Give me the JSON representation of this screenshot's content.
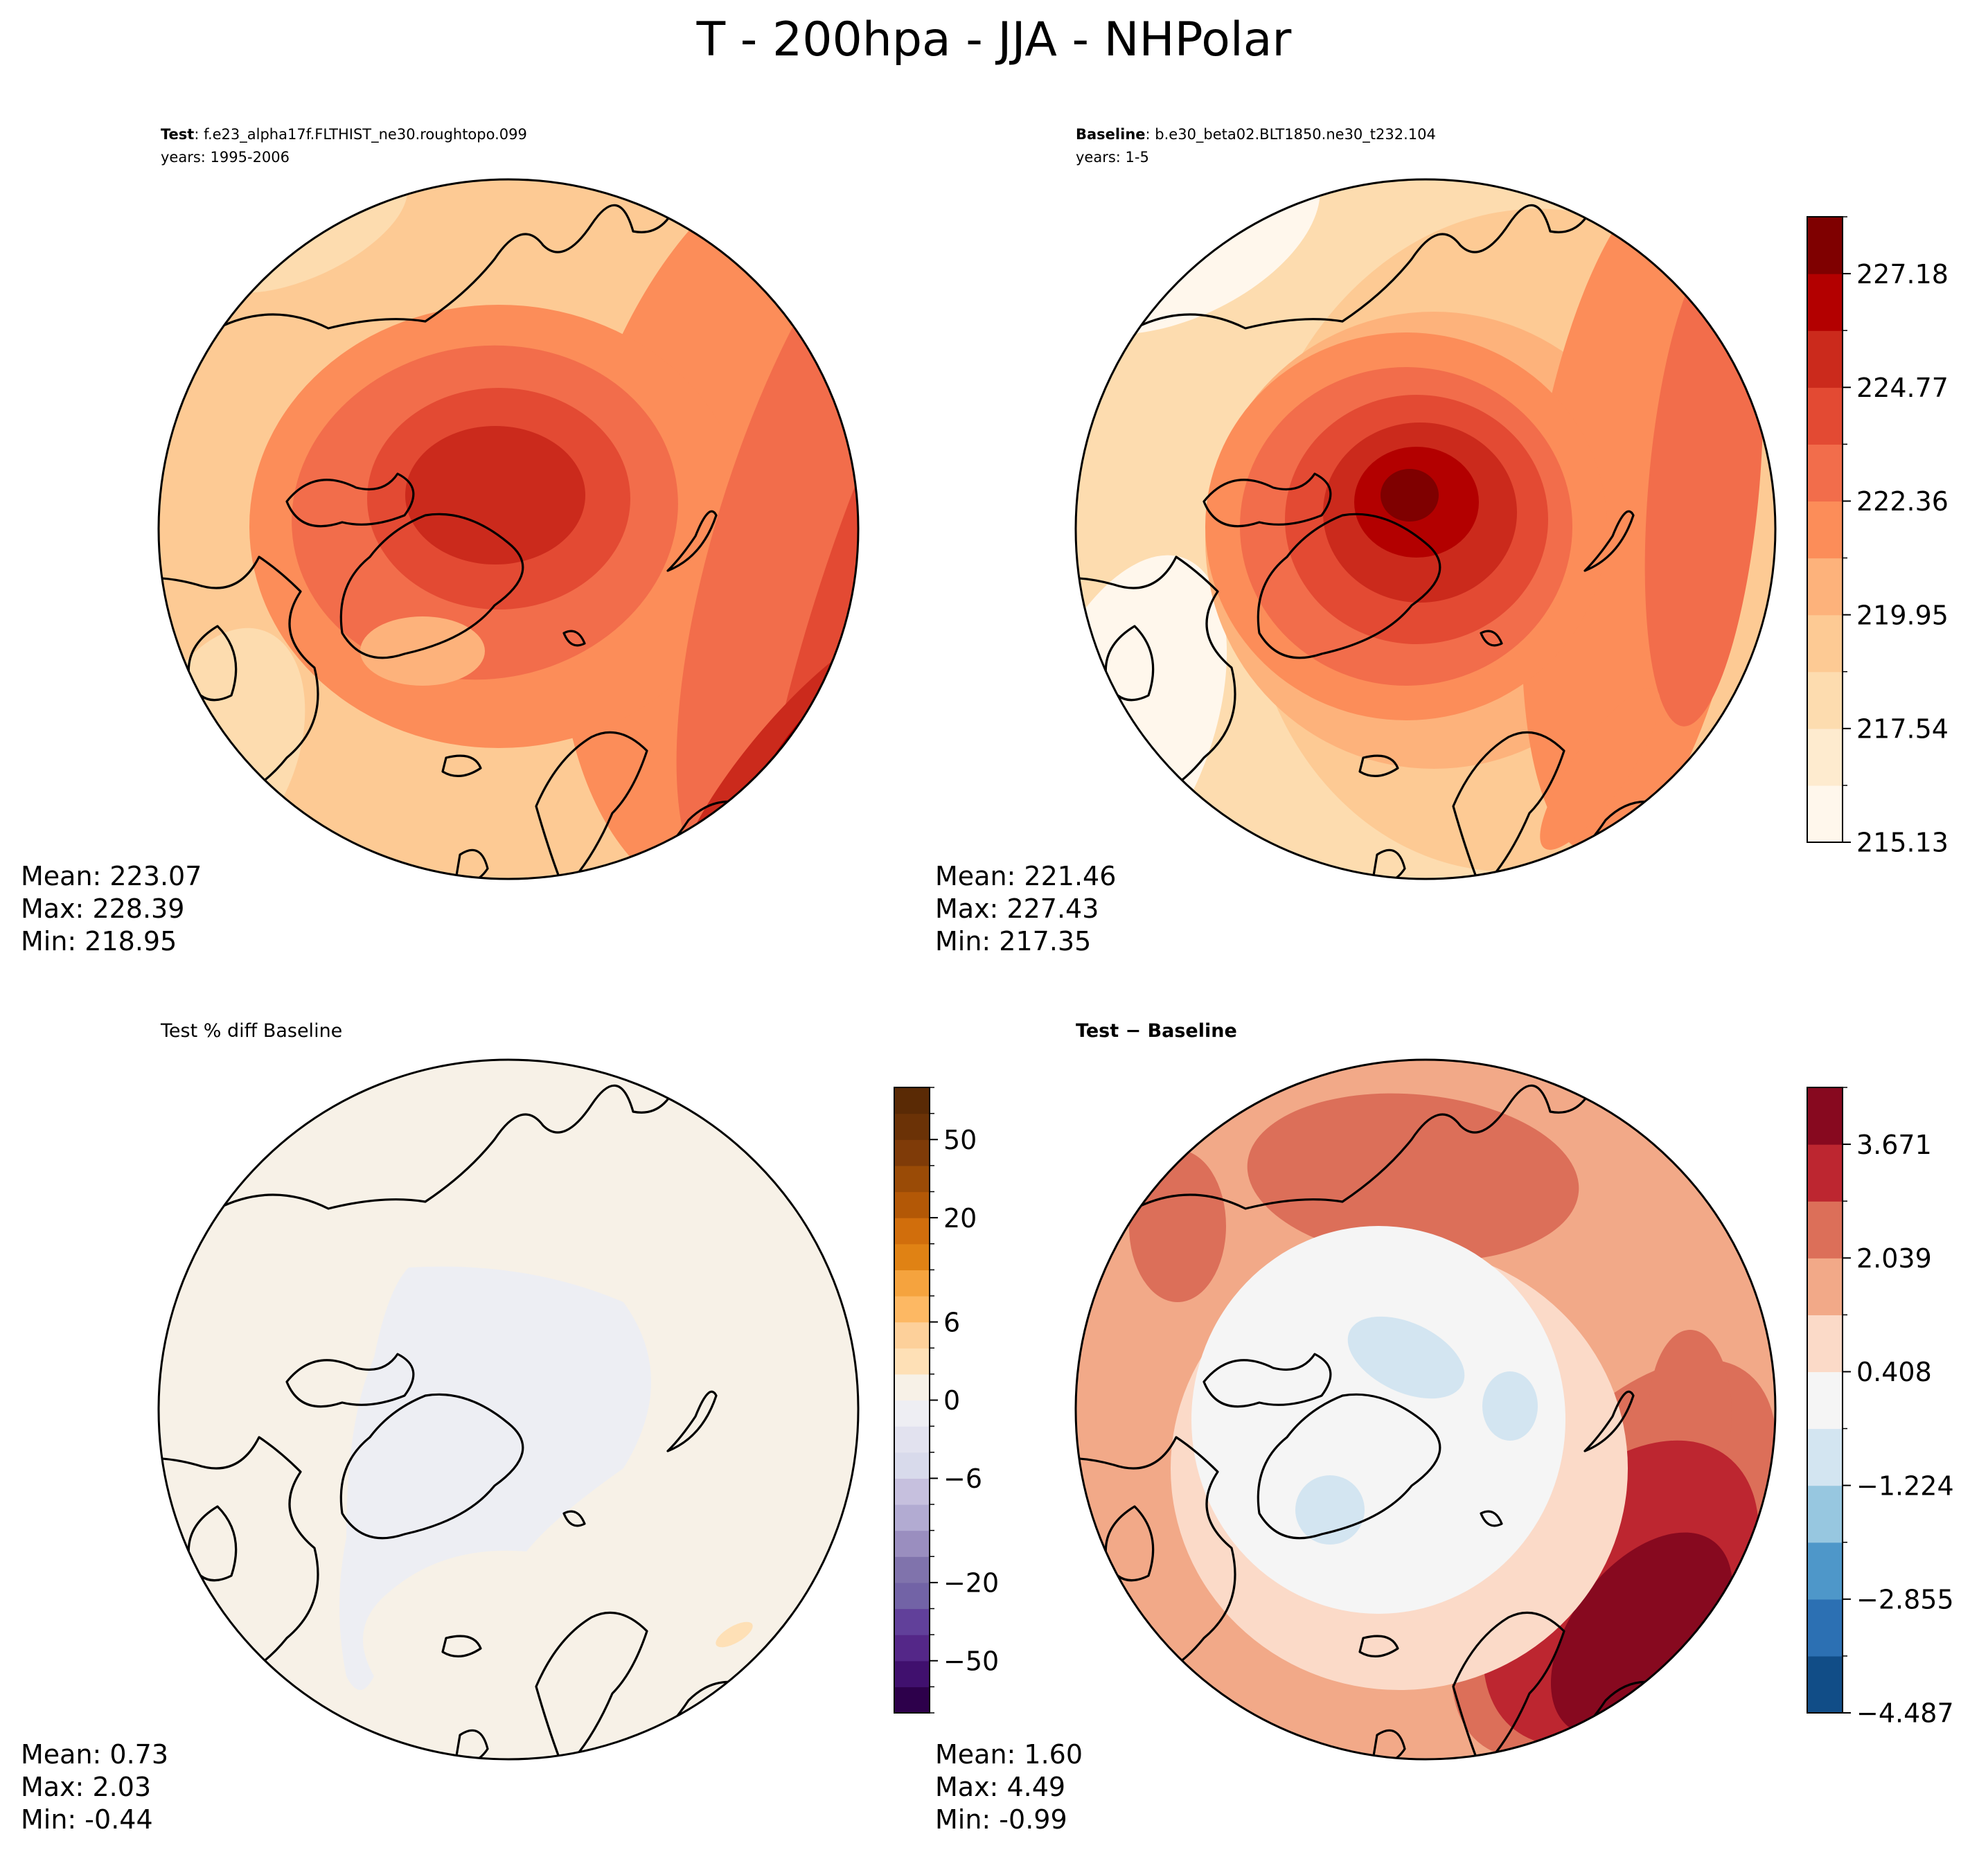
{
  "figure": {
    "title": "T - 200hpa - JJA - NHPolar"
  },
  "panels": {
    "test": {
      "label": "Test",
      "case": "f.e23_alpha17f.FLTHIST_ne30.roughtopo.099",
      "years": "years: 1995-2006",
      "stats": {
        "mean": "Mean: 223.07",
        "max": "Max: 228.39",
        "min": "Min: 218.95"
      }
    },
    "baseline": {
      "label": "Baseline",
      "case": "b.e30_beta02.BLT1850.ne30_t232.104",
      "years": "years: 1-5",
      "stats": {
        "mean": "Mean: 221.46",
        "max": "Max: 227.43",
        "min": "Min: 217.35"
      }
    },
    "pctdiff": {
      "label": "Test % diff Baseline",
      "stats": {
        "mean": "Mean:  0.73",
        "max": "Max:  2.03",
        "min": "Min: -0.44"
      }
    },
    "diff": {
      "label": "Test",
      "label2": "Baseline",
      "stats": {
        "mean": "Mean:  1.60",
        "max": "Max:  4.49",
        "min": "Min: -0.99"
      }
    }
  },
  "chart_data": [
    {
      "type": "heatmap",
      "name": "test",
      "title": "Test: f.e23_alpha17f.FLTHIST_ne30.roughtopo.099",
      "projection": "north-polar-stereographic",
      "mean": 223.07,
      "max": 228.39,
      "min": 218.95,
      "colormap": "OrRd",
      "field_description_levels": [
        219.5,
        220.5,
        221.5,
        222.5,
        223.5,
        224.5,
        225.5,
        226.5,
        227.5,
        228.2
      ]
    },
    {
      "type": "heatmap",
      "name": "baseline",
      "title": "Baseline: b.e30_beta02.BLT1850.ne30_t232.104",
      "projection": "north-polar-stereographic",
      "mean": 221.46,
      "max": 227.43,
      "min": 217.35,
      "colormap": "OrRd",
      "colorbar": {
        "range": [
          215.13,
          228.39
        ],
        "ticks": [
          "227.18",
          "224.77",
          "222.36",
          "219.95",
          "217.54",
          "215.13"
        ],
        "tick_values": [
          227.18,
          224.77,
          222.36,
          219.95,
          217.54,
          215.13
        ],
        "levels": [
          215.13,
          216.34,
          217.54,
          218.75,
          219.95,
          221.16,
          222.36,
          223.57,
          224.77,
          225.98,
          227.18,
          228.39
        ],
        "colors": [
          "#fff7ec",
          "#feebcf",
          "#fddcaf",
          "#fdca94",
          "#fdb27b",
          "#fc8d59",
          "#f26d4b",
          "#e34a33",
          "#cb2a1c",
          "#b30000",
          "#7f0000"
        ]
      }
    },
    {
      "type": "heatmap",
      "name": "pctdiff",
      "title": "Test % diff Baseline",
      "projection": "north-polar-stereographic",
      "mean": 0.73,
      "max": 2.03,
      "min": -0.44,
      "colormap": "PuOr_r",
      "colorbar": {
        "ticks": [
          "50",
          "20",
          "6",
          "0",
          "−6",
          "−20",
          "−50"
        ],
        "tick_values": [
          50,
          20,
          6,
          0,
          -6,
          -20,
          -50
        ],
        "levels": [
          -100,
          -75,
          -50,
          -40,
          -30,
          -20,
          -15,
          -10,
          -8,
          -6,
          -4,
          -2,
          0,
          2,
          4,
          6,
          8,
          10,
          15,
          20,
          30,
          40,
          50,
          75,
          100
        ],
        "colors": [
          "#2d004b",
          "#40106e",
          "#542788",
          "#61409a",
          "#7263a6",
          "#8073ac",
          "#9a8ebf",
          "#b2abd2",
          "#c6c0de",
          "#d8daeb",
          "#e2e2ef",
          "#eeeef3",
          "#f7f1e7",
          "#fee0b6",
          "#fdd09a",
          "#fdb863",
          "#f5a33e",
          "#e08214",
          "#d16e0c",
          "#b35806",
          "#9a4b06",
          "#7f3b08",
          "#6b3206",
          "#5a2a05"
        ]
      }
    },
    {
      "type": "heatmap",
      "name": "diff",
      "title": "Test − Baseline",
      "projection": "north-polar-stereographic",
      "mean": 1.6,
      "max": 4.49,
      "min": -0.99,
      "colormap": "RdBu_r",
      "colorbar": {
        "range": [
          -4.487,
          4.487
        ],
        "ticks": [
          "3.671",
          "2.039",
          "0.408",
          "−1.224",
          "−2.855",
          "−4.487"
        ],
        "tick_values": [
          3.671,
          2.039,
          0.408,
          -1.224,
          -2.855,
          -4.487
        ],
        "levels": [
          -4.487,
          -3.671,
          -2.855,
          -2.039,
          -1.224,
          -0.408,
          0.408,
          1.224,
          2.039,
          2.855,
          3.671,
          4.487
        ],
        "colors": [
          "#114d87",
          "#2c70b3",
          "#4e97c9",
          "#97c7e0",
          "#d3e5f1",
          "#f5f5f5",
          "#fbdac8",
          "#f2a988",
          "#dc6f59",
          "#bd2630",
          "#87091f"
        ]
      }
    }
  ]
}
